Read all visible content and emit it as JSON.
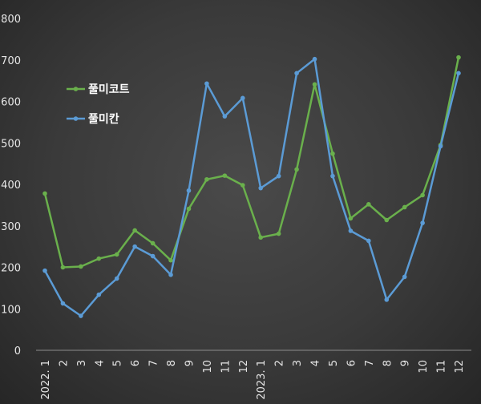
{
  "chart_data": {
    "type": "line",
    "categories": [
      "2022. 1",
      "2",
      "3",
      "4",
      "5",
      "6",
      "7",
      "8",
      "9",
      "10",
      "11",
      "12",
      "2023. 1",
      "2",
      "3",
      "4",
      "5",
      "6",
      "7",
      "8",
      "9",
      "10",
      "11",
      "12"
    ],
    "series": [
      {
        "name": "풀미코트",
        "color": "#6ab04c",
        "values": [
          378,
          200,
          202,
          221,
          231,
          289,
          258,
          217,
          341,
          412,
          421,
          398,
          272,
          281,
          436,
          641,
          474,
          318,
          352,
          314,
          345,
          374,
          495,
          706
        ]
      },
      {
        "name": "풀미칸",
        "color": "#5b9bd5",
        "values": [
          192,
          113,
          83,
          134,
          173,
          250,
          227,
          182,
          385,
          643,
          564,
          608,
          391,
          420,
          668,
          702,
          420,
          288,
          264,
          122,
          177,
          307,
          492,
          668
        ]
      }
    ],
    "ylim": [
      0,
      800
    ],
    "yticks": [
      "0",
      "100",
      "200",
      "300",
      "400",
      "500",
      "600",
      "700",
      "800"
    ],
    "grid": false,
    "legend_position": "left-upper-inside",
    "background": "#3a3a3a"
  }
}
